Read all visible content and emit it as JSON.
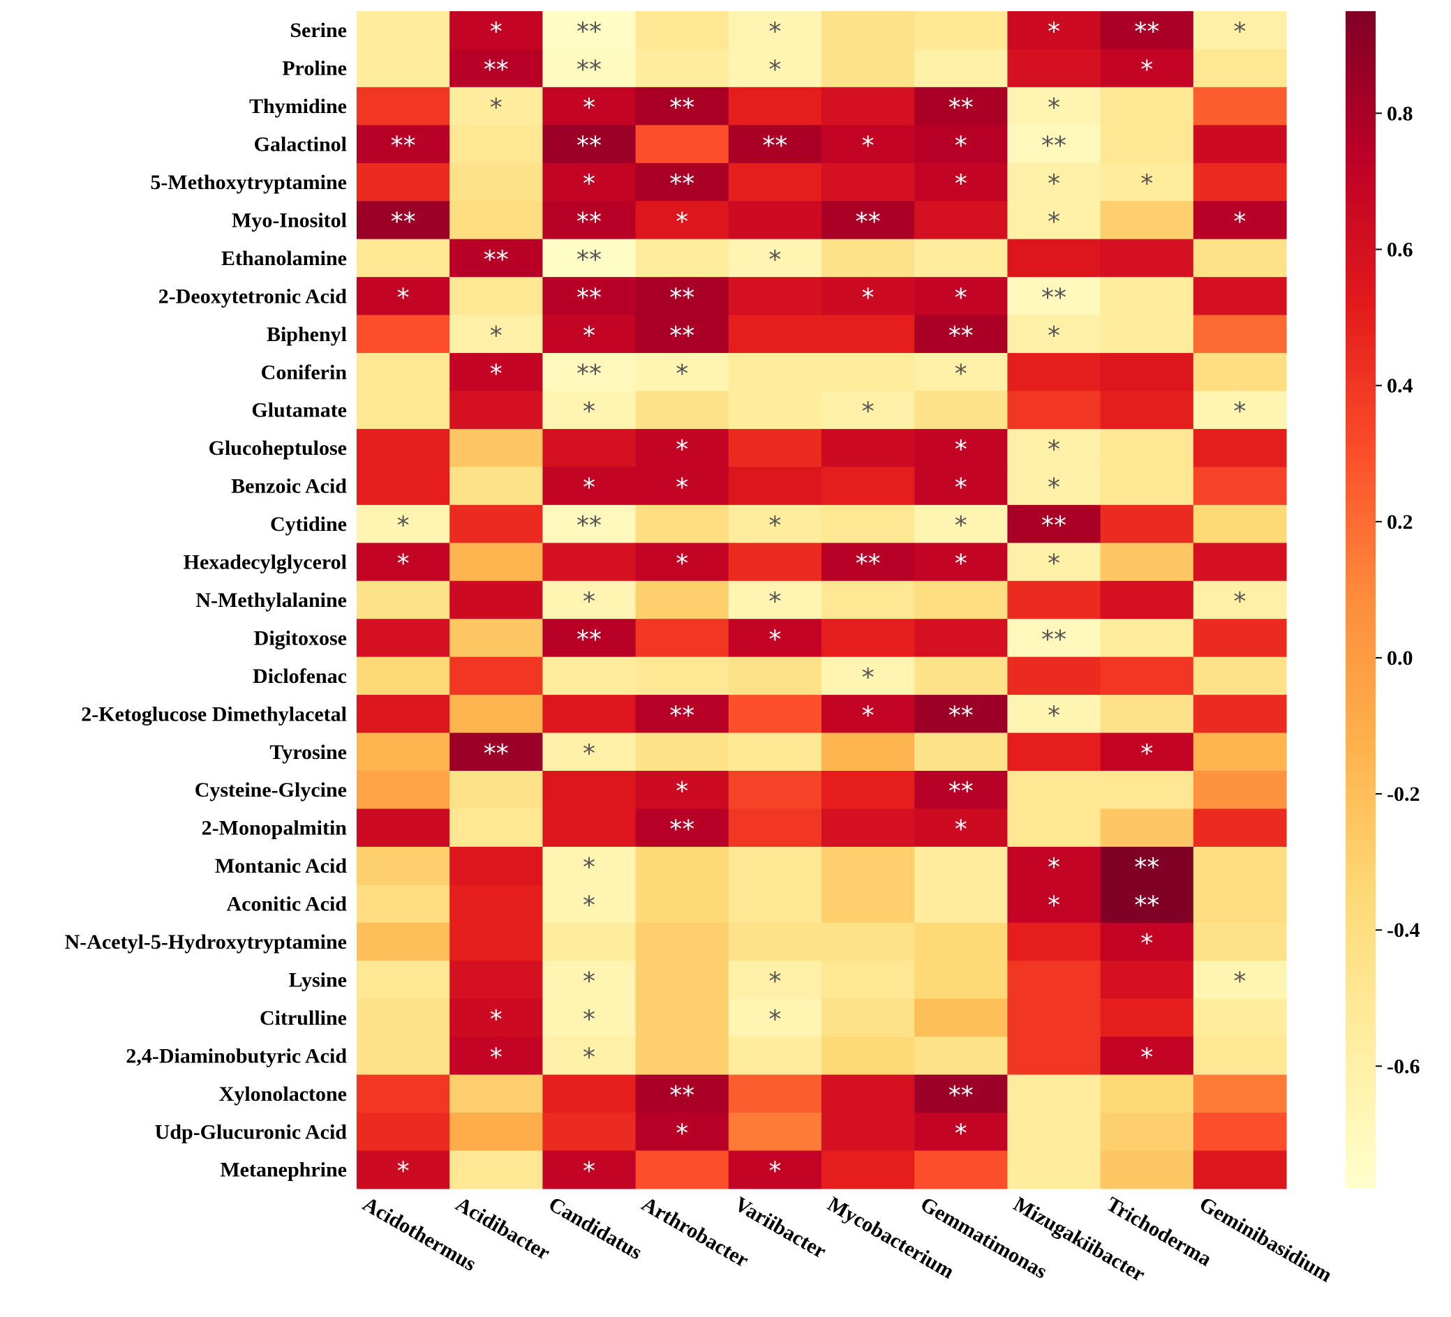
{
  "chart_data": {
    "type": "heatmap",
    "title": "",
    "xlabel": "",
    "ylabel": "",
    "rows": [
      "Serine",
      "Proline",
      "Thymidine",
      "Galactinol",
      "5-Methoxytryptamine",
      "Myo-Inositol",
      "Ethanolamine",
      "2-Deoxytetronic Acid",
      "Biphenyl",
      "Coniferin",
      "Glutamate",
      "Glucoheptulose",
      "Benzoic Acid",
      "Cytidine",
      "Hexadecylglycerol",
      "N-Methylalanine",
      "Digitoxose",
      "Diclofenac",
      "2-Ketoglucose Dimethylacetal",
      "Tyrosine",
      "Cysteine-Glycine",
      "2-Monopalmitin",
      "Montanic Acid",
      "Aconitic Acid",
      "N-Acetyl-5-Hydroxytryptamine",
      "Lysine",
      "Citrulline",
      "2,4-Diaminobutyric Acid",
      "Xylonolactone",
      "Udp-Glucuronic Acid",
      "Metanephrine"
    ],
    "columns": [
      "Acidothermus",
      "Acidibacter",
      "Candidatus",
      "Arthrobacter",
      "Variibacter",
      "Mycobacterium",
      "Gemmatimonas",
      "Mizugakiibacter",
      "Trichoderma",
      "Geminibasidium"
    ],
    "values": [
      [
        -0.55,
        0.7,
        -0.75,
        -0.5,
        -0.65,
        -0.45,
        -0.5,
        0.65,
        0.8,
        -0.6
      ],
      [
        -0.55,
        0.75,
        -0.72,
        -0.55,
        -0.65,
        -0.45,
        -0.6,
        0.6,
        0.7,
        -0.5
      ],
      [
        0.4,
        -0.55,
        0.7,
        0.8,
        0.5,
        0.6,
        0.8,
        -0.65,
        -0.5,
        0.25
      ],
      [
        0.75,
        -0.5,
        0.85,
        0.3,
        0.8,
        0.7,
        0.75,
        -0.7,
        -0.5,
        0.65
      ],
      [
        0.45,
        -0.45,
        0.7,
        0.8,
        0.5,
        0.6,
        0.7,
        -0.6,
        -0.55,
        0.45
      ],
      [
        0.85,
        -0.4,
        0.75,
        0.55,
        0.65,
        0.8,
        0.6,
        -0.6,
        -0.3,
        0.75
      ],
      [
        -0.5,
        0.75,
        -0.75,
        -0.55,
        -0.65,
        -0.45,
        -0.55,
        0.55,
        0.6,
        -0.45
      ],
      [
        0.7,
        -0.5,
        0.75,
        0.8,
        0.6,
        0.65,
        0.7,
        -0.7,
        -0.55,
        0.6
      ],
      [
        0.3,
        -0.6,
        0.7,
        0.8,
        0.5,
        0.5,
        0.8,
        -0.6,
        -0.55,
        0.2
      ],
      [
        -0.5,
        0.7,
        -0.7,
        -0.65,
        -0.55,
        -0.55,
        -0.6,
        0.5,
        0.55,
        -0.4
      ],
      [
        -0.5,
        0.6,
        -0.65,
        -0.45,
        -0.55,
        -0.6,
        -0.45,
        0.4,
        0.5,
        -0.65
      ],
      [
        0.5,
        -0.25,
        0.6,
        0.7,
        0.45,
        0.65,
        0.7,
        -0.6,
        -0.5,
        0.5
      ],
      [
        0.5,
        -0.45,
        0.7,
        0.7,
        0.55,
        0.5,
        0.7,
        -0.6,
        -0.5,
        0.35
      ],
      [
        -0.65,
        0.45,
        -0.7,
        -0.4,
        -0.55,
        -0.5,
        -0.65,
        0.8,
        0.45,
        -0.35
      ],
      [
        0.7,
        -0.15,
        0.6,
        0.7,
        0.45,
        0.75,
        0.7,
        -0.6,
        -0.25,
        0.6
      ],
      [
        -0.45,
        0.65,
        -0.65,
        -0.3,
        -0.65,
        -0.5,
        -0.4,
        0.45,
        0.6,
        -0.6
      ],
      [
        0.6,
        -0.25,
        0.75,
        0.4,
        0.7,
        0.5,
        0.6,
        -0.7,
        -0.55,
        0.45
      ],
      [
        -0.35,
        0.4,
        -0.55,
        -0.5,
        -0.45,
        -0.65,
        -0.45,
        0.45,
        0.4,
        -0.45
      ],
      [
        0.55,
        -0.15,
        0.55,
        0.75,
        0.3,
        0.7,
        0.85,
        -0.65,
        -0.45,
        0.45
      ],
      [
        -0.15,
        0.85,
        -0.6,
        -0.45,
        -0.5,
        -0.15,
        -0.45,
        0.5,
        0.7,
        -0.15
      ],
      [
        -0.05,
        -0.45,
        0.55,
        0.65,
        0.35,
        0.5,
        0.75,
        -0.5,
        -0.5,
        0.05
      ],
      [
        0.65,
        -0.5,
        0.55,
        0.75,
        0.4,
        0.6,
        0.65,
        -0.5,
        -0.25,
        0.45
      ],
      [
        -0.3,
        0.55,
        -0.65,
        -0.35,
        -0.5,
        -0.3,
        -0.55,
        0.7,
        0.95,
        -0.4
      ],
      [
        -0.4,
        0.5,
        -0.65,
        -0.35,
        -0.5,
        -0.3,
        -0.55,
        0.7,
        0.95,
        -0.4
      ],
      [
        -0.2,
        0.5,
        -0.55,
        -0.3,
        -0.45,
        -0.45,
        -0.35,
        0.5,
        0.7,
        -0.45
      ],
      [
        -0.5,
        0.6,
        -0.65,
        -0.3,
        -0.6,
        -0.5,
        -0.35,
        0.4,
        0.6,
        -0.65
      ],
      [
        -0.45,
        0.65,
        -0.65,
        -0.3,
        -0.65,
        -0.45,
        -0.2,
        0.4,
        0.5,
        -0.55
      ],
      [
        -0.45,
        0.7,
        -0.6,
        -0.3,
        -0.55,
        -0.35,
        -0.45,
        0.4,
        0.7,
        -0.5
      ],
      [
        0.4,
        -0.3,
        0.5,
        0.8,
        0.25,
        0.6,
        0.85,
        -0.55,
        -0.35,
        0.15
      ],
      [
        0.45,
        -0.1,
        0.45,
        0.75,
        0.15,
        0.6,
        0.7,
        -0.55,
        -0.3,
        0.3
      ],
      [
        0.65,
        -0.5,
        0.7,
        0.3,
        0.7,
        0.5,
        0.3,
        -0.55,
        -0.25,
        0.55
      ]
    ],
    "annotations": [
      [
        "",
        "*",
        "**",
        "",
        "*",
        "",
        "",
        "*",
        "**",
        "*"
      ],
      [
        "",
        "**",
        "**",
        "",
        "*",
        "",
        "",
        "",
        "*",
        ""
      ],
      [
        "",
        "*",
        "*",
        "**",
        "",
        "",
        "**",
        "*",
        "",
        ""
      ],
      [
        "**",
        "",
        "**",
        "",
        "**",
        "*",
        "*",
        "**",
        "",
        ""
      ],
      [
        "",
        "",
        "*",
        "**",
        "",
        "",
        "*",
        "*",
        "*",
        ""
      ],
      [
        "**",
        "",
        "**",
        "*",
        "",
        "**",
        "",
        "*",
        "",
        "*"
      ],
      [
        "",
        "**",
        "**",
        "",
        "*",
        "",
        "",
        "",
        "",
        ""
      ],
      [
        "*",
        "",
        "**",
        "**",
        "",
        "*",
        "*",
        "**",
        "",
        ""
      ],
      [
        "",
        "*",
        "*",
        "**",
        "",
        "",
        "**",
        "*",
        "",
        ""
      ],
      [
        "",
        "*",
        "**",
        "*",
        "",
        "",
        "*",
        "",
        "",
        ""
      ],
      [
        "",
        "",
        "*",
        "",
        "",
        "*",
        "",
        "",
        "",
        "*"
      ],
      [
        "",
        "",
        "",
        "*",
        "",
        "",
        "*",
        "*",
        "",
        ""
      ],
      [
        "",
        "",
        "*",
        "*",
        "",
        "",
        "*",
        "*",
        "",
        ""
      ],
      [
        "*",
        "",
        "**",
        "",
        "*",
        "",
        "*",
        "**",
        "",
        ""
      ],
      [
        "*",
        "",
        "",
        "*",
        "",
        "**",
        "*",
        "*",
        "",
        ""
      ],
      [
        "",
        "",
        "*",
        "",
        "*",
        "",
        "",
        "",
        "",
        "*"
      ],
      [
        "",
        "",
        "**",
        "",
        "*",
        "",
        "",
        "**",
        "",
        ""
      ],
      [
        "",
        "",
        "",
        "",
        "",
        "*",
        "",
        "",
        "",
        ""
      ],
      [
        "",
        "",
        "",
        "**",
        "",
        "*",
        "**",
        "*",
        "",
        ""
      ],
      [
        "",
        "**",
        "*",
        "",
        "",
        "",
        "",
        "",
        "*",
        ""
      ],
      [
        "",
        "",
        "",
        "*",
        "",
        "",
        "**",
        "",
        "",
        ""
      ],
      [
        "",
        "",
        "",
        "**",
        "",
        "",
        "*",
        "",
        "",
        ""
      ],
      [
        "",
        "",
        "*",
        "",
        "",
        "",
        "",
        "*",
        "**",
        ""
      ],
      [
        "",
        "",
        "*",
        "",
        "",
        "",
        "",
        "*",
        "**",
        ""
      ],
      [
        "",
        "",
        "",
        "",
        "",
        "",
        "",
        "",
        "*",
        ""
      ],
      [
        "",
        "",
        "*",
        "",
        "*",
        "",
        "",
        "",
        "",
        "*"
      ],
      [
        "",
        "*",
        "*",
        "",
        "*",
        "",
        "",
        "",
        "",
        ""
      ],
      [
        "",
        "*",
        "*",
        "",
        "",
        "",
        "",
        "",
        "*",
        ""
      ],
      [
        "",
        "",
        "",
        "**",
        "",
        "",
        "**",
        "",
        "",
        ""
      ],
      [
        "",
        "",
        "",
        "*",
        "",
        "",
        "*",
        "",
        "",
        ""
      ],
      [
        "*",
        "",
        "*",
        "",
        "*",
        "",
        "",
        "",
        "",
        ""
      ]
    ],
    "colorbar": {
      "min": -0.78,
      "max": 0.95,
      "ticks": [
        0.8,
        0.6,
        0.4,
        0.2,
        0.0,
        -0.2,
        -0.4,
        -0.6
      ],
      "tick_labels": [
        "0.8",
        "0.6",
        "0.4",
        "0.2",
        "0.0",
        "-0.2",
        "-0.4",
        "-0.6"
      ],
      "colormap": "YlOrRd",
      "stops": [
        "#ffffcc",
        "#ffeda0",
        "#fed976",
        "#feb24c",
        "#fd8d3c",
        "#fc4e2a",
        "#e31a1c",
        "#bd0026",
        "#800026"
      ]
    },
    "annotation_colors": {
      "light_cell": "#555555",
      "dark_cell": "#ffffff"
    }
  }
}
